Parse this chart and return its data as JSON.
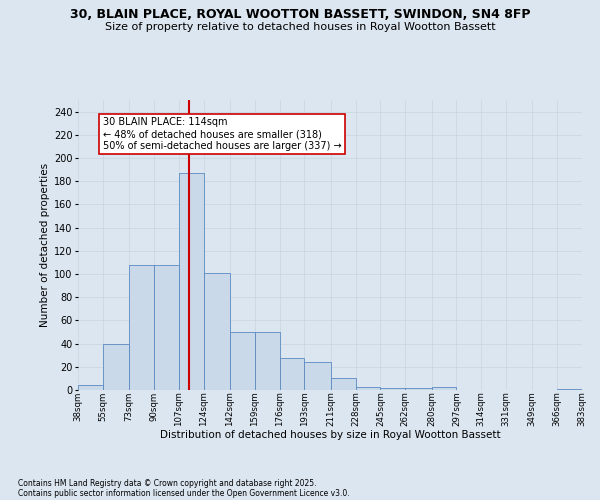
{
  "title": "30, BLAIN PLACE, ROYAL WOOTTON BASSETT, SWINDON, SN4 8FP",
  "subtitle": "Size of property relative to detached houses in Royal Wootton Bassett",
  "xlabel": "Distribution of detached houses by size in Royal Wootton Bassett",
  "ylabel": "Number of detached properties",
  "footnote1": "Contains HM Land Registry data © Crown copyright and database right 2025.",
  "footnote2": "Contains public sector information licensed under the Open Government Licence v3.0.",
  "annotation_title": "30 BLAIN PLACE: 114sqm",
  "annotation_line1": "← 48% of detached houses are smaller (318)",
  "annotation_line2": "50% of semi-detached houses are larger (337) →",
  "property_size": 114,
  "bin_edges": [
    38,
    55,
    73,
    90,
    107,
    124,
    142,
    159,
    176,
    193,
    211,
    228,
    245,
    262,
    280,
    297,
    314,
    331,
    349,
    366,
    383
  ],
  "bar_heights": [
    4,
    40,
    108,
    108,
    187,
    101,
    50,
    50,
    28,
    24,
    10,
    3,
    2,
    2,
    3,
    0,
    0,
    0,
    0,
    1
  ],
  "bar_color": "#c9d9ea",
  "bar_edge_color": "#5a8abf",
  "highlight_line_color": "#cc0000",
  "grid_color": "#c8d4e0",
  "background_color": "#dce6f0",
  "ylim": [
    0,
    250
  ],
  "yticks": [
    0,
    20,
    40,
    60,
    80,
    100,
    120,
    140,
    160,
    180,
    200,
    220,
    240
  ]
}
